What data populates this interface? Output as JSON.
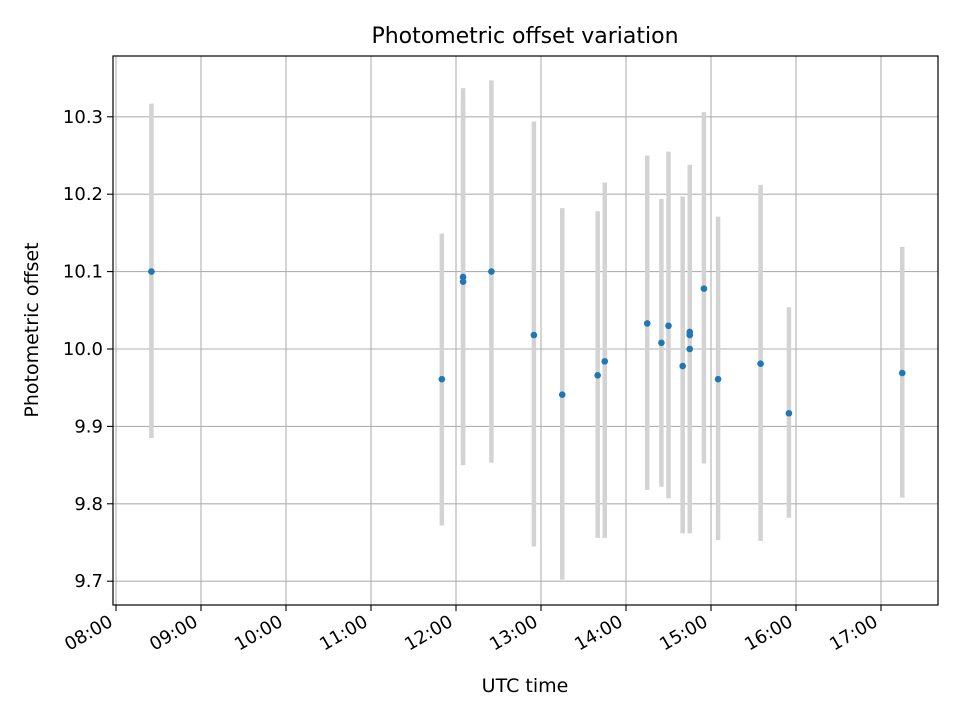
{
  "chart_data": {
    "type": "scatter",
    "title": "Photometric offset variation",
    "xlabel": "UTC time",
    "ylabel": "Photometric offset",
    "x_tick_labels": [
      "08:00",
      "09:00",
      "10:00",
      "11:00",
      "12:00",
      "13:00",
      "14:00",
      "15:00",
      "16:00",
      "17:00"
    ],
    "y_tick_labels": [
      "9.7",
      "9.8",
      "9.9",
      "10.0",
      "10.1",
      "10.2",
      "10.3"
    ],
    "grid": true,
    "colors": {
      "points": "#1f77b4",
      "error_bars": "#d3d3d3",
      "grid": "#b0b0b0"
    },
    "series": [
      {
        "x": [
          "08:25",
          "11:50",
          "12:05",
          "12:05",
          "12:25",
          "12:55",
          "13:15",
          "13:40",
          "13:45",
          "14:15",
          "14:25",
          "14:30",
          "14:40",
          "14:45",
          "14:45",
          "14:45",
          "14:55",
          "15:05",
          "15:35",
          "15:55",
          "17:15"
        ],
        "y": [
          10.1,
          9.961,
          10.093,
          10.087,
          10.1,
          10.018,
          9.941,
          9.966,
          9.984,
          10.033,
          10.008,
          10.03,
          9.978,
          10.022,
          10.018,
          10.0,
          10.078,
          9.961,
          9.981,
          9.917,
          9.969
        ],
        "y_low": [
          9.885,
          9.772,
          9.85,
          9.855,
          9.853,
          9.745,
          9.702,
          9.756,
          9.756,
          9.818,
          9.822,
          9.807,
          9.762,
          9.762,
          9.81,
          9.81,
          9.852,
          9.753,
          9.752,
          9.782,
          9.808
        ],
        "y_high": [
          10.317,
          10.149,
          10.337,
          10.321,
          10.347,
          10.294,
          10.182,
          10.178,
          10.215,
          10.25,
          10.194,
          10.255,
          10.197,
          10.238,
          10.226,
          10.226,
          10.306,
          10.171,
          10.212,
          10.054,
          10.132
        ]
      }
    ]
  }
}
